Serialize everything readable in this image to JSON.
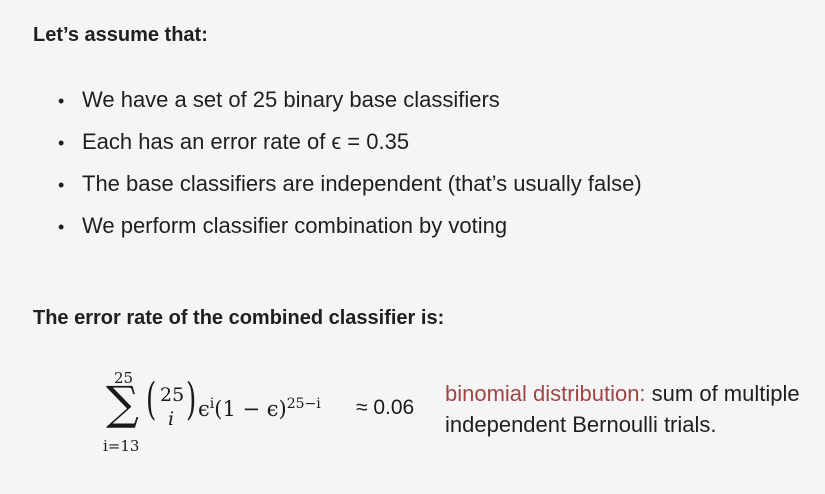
{
  "heading_assumptions": "Let’s assume that:",
  "bullets": [
    "We have a set of 25 binary base classifiers",
    "Each has an error rate of ϵ = 0.35",
    "The base classifiers are independent (that’s usually false)",
    "We perform classifier combination by voting"
  ],
  "bullet_glyph": "•",
  "heading_result": "The error rate of the combined classifier is:",
  "formula": {
    "sum_upper": "25",
    "sum_lower": "i=13",
    "sigma": "∑",
    "binom_top": "25",
    "binom_bottom": "i",
    "term_base": "ϵ",
    "term_exp1": "i",
    "term_mid": "(1 − ϵ)",
    "term_exp2": "25−i",
    "approx": "≈ 0.06"
  },
  "note": {
    "highlight": "binomial distribution:",
    "highlight_color": "#a04545",
    "rest": " sum of multiple independent Bernoulli trials."
  }
}
